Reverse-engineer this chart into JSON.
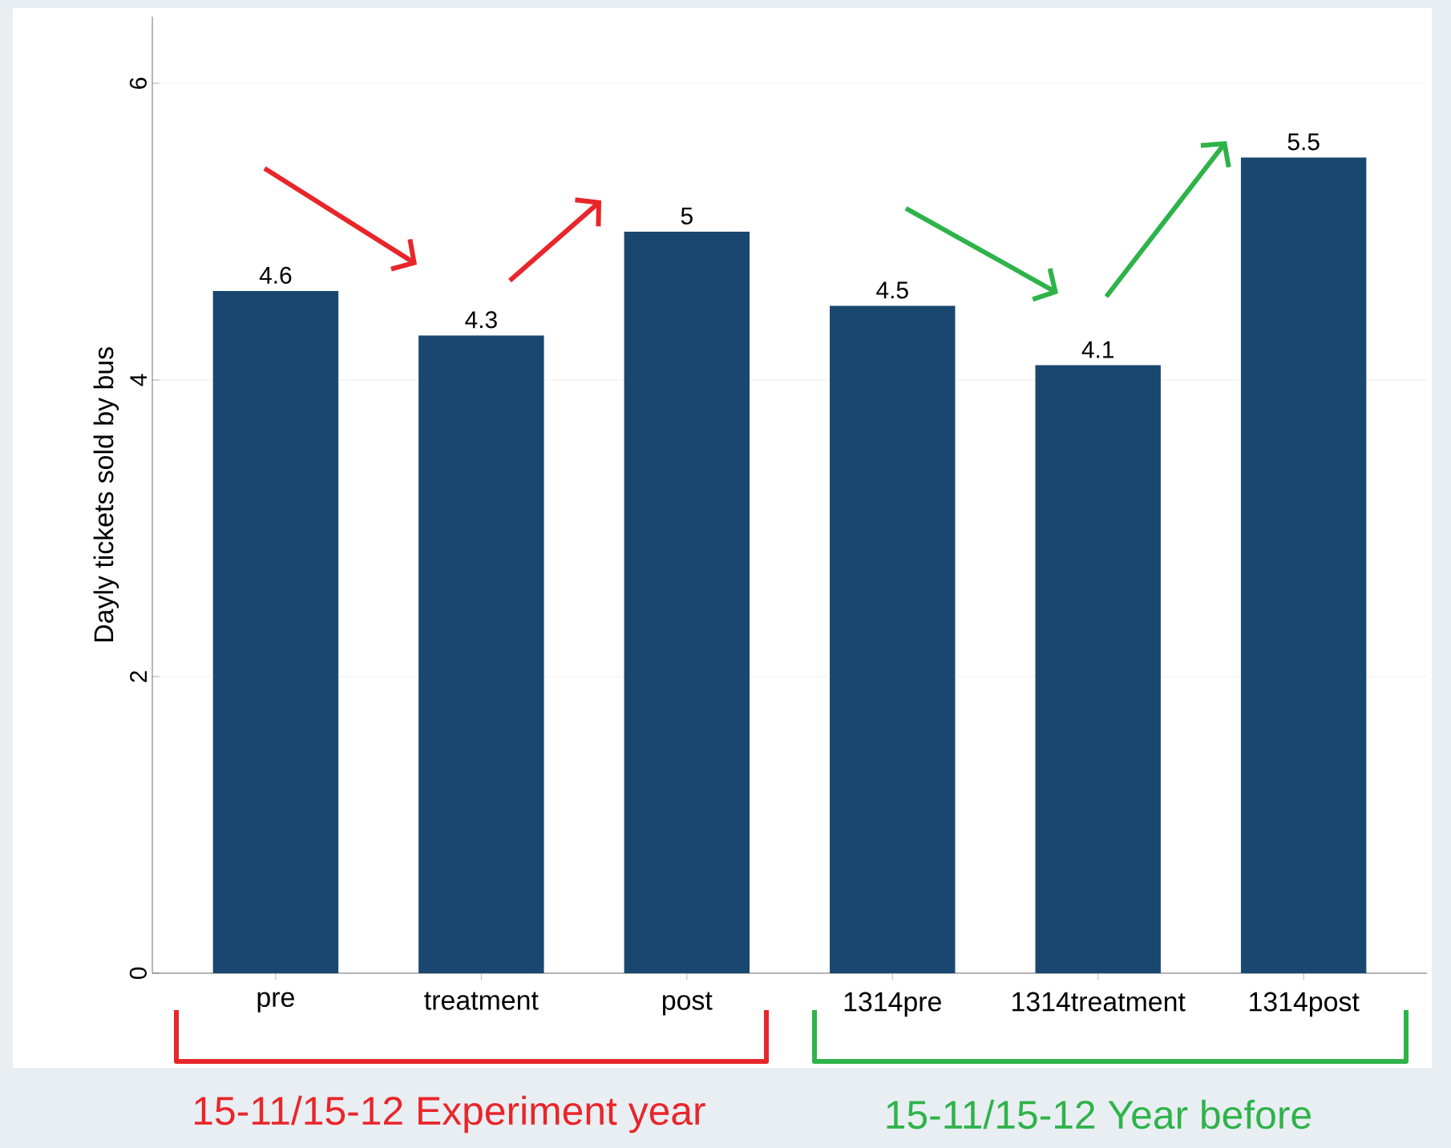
{
  "chart_data": {
    "type": "bar",
    "ylabel": "Dayly tickets sold by bus",
    "categories": [
      "pre",
      "treatment",
      "post",
      "1314pre",
      "1314treatment",
      "1314post"
    ],
    "values": [
      4.6,
      4.3,
      5,
      4.5,
      4.1,
      5.5
    ],
    "color": "#1a476f",
    "ylim": [
      0,
      6.45
    ],
    "yticks": [
      0,
      2,
      4,
      6
    ],
    "grid": "y",
    "data_labels": true,
    "annotations": [
      "15-11/15-12 Experiment year",
      "15-11/15-12 Year before"
    ]
  }
}
